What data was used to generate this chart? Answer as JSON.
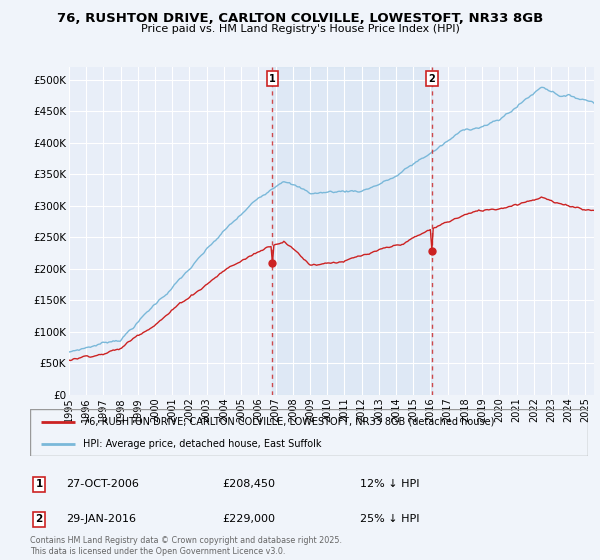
{
  "title_line1": "76, RUSHTON DRIVE, CARLTON COLVILLE, LOWESTOFT, NR33 8GB",
  "title_line2": "Price paid vs. HM Land Registry's House Price Index (HPI)",
  "yticks": [
    0,
    50000,
    100000,
    150000,
    200000,
    250000,
    300000,
    350000,
    400000,
    450000,
    500000
  ],
  "ytick_labels": [
    "£0",
    "£50K",
    "£100K",
    "£150K",
    "£200K",
    "£250K",
    "£300K",
    "£350K",
    "£400K",
    "£450K",
    "£500K"
  ],
  "ylim": [
    0,
    520000
  ],
  "hpi_color": "#7ab8d9",
  "price_color": "#cc2222",
  "marker1_date_x": 2006.82,
  "marker1_y": 208450,
  "marker2_date_x": 2016.08,
  "marker2_y": 229000,
  "legend_label_price": "76, RUSHTON DRIVE, CARLTON COLVILLE, LOWESTOFT, NR33 8GB (detached house)",
  "legend_label_hpi": "HPI: Average price, detached house, East Suffolk",
  "marker1_date_str": "27-OCT-2006",
  "marker1_price_str": "£208,450",
  "marker1_pct_str": "12% ↓ HPI",
  "marker2_date_str": "29-JAN-2016",
  "marker2_price_str": "£229,000",
  "marker2_pct_str": "25% ↓ HPI",
  "footnote": "Contains HM Land Registry data © Crown copyright and database right 2025.\nThis data is licensed under the Open Government Licence v3.0.",
  "background_color": "#f0f4fa",
  "plot_bg_color": "#e8eef8",
  "xmin": 1995,
  "xmax": 2025.5,
  "grid_color": "#ffffff",
  "shade_color": "#ccdff0"
}
